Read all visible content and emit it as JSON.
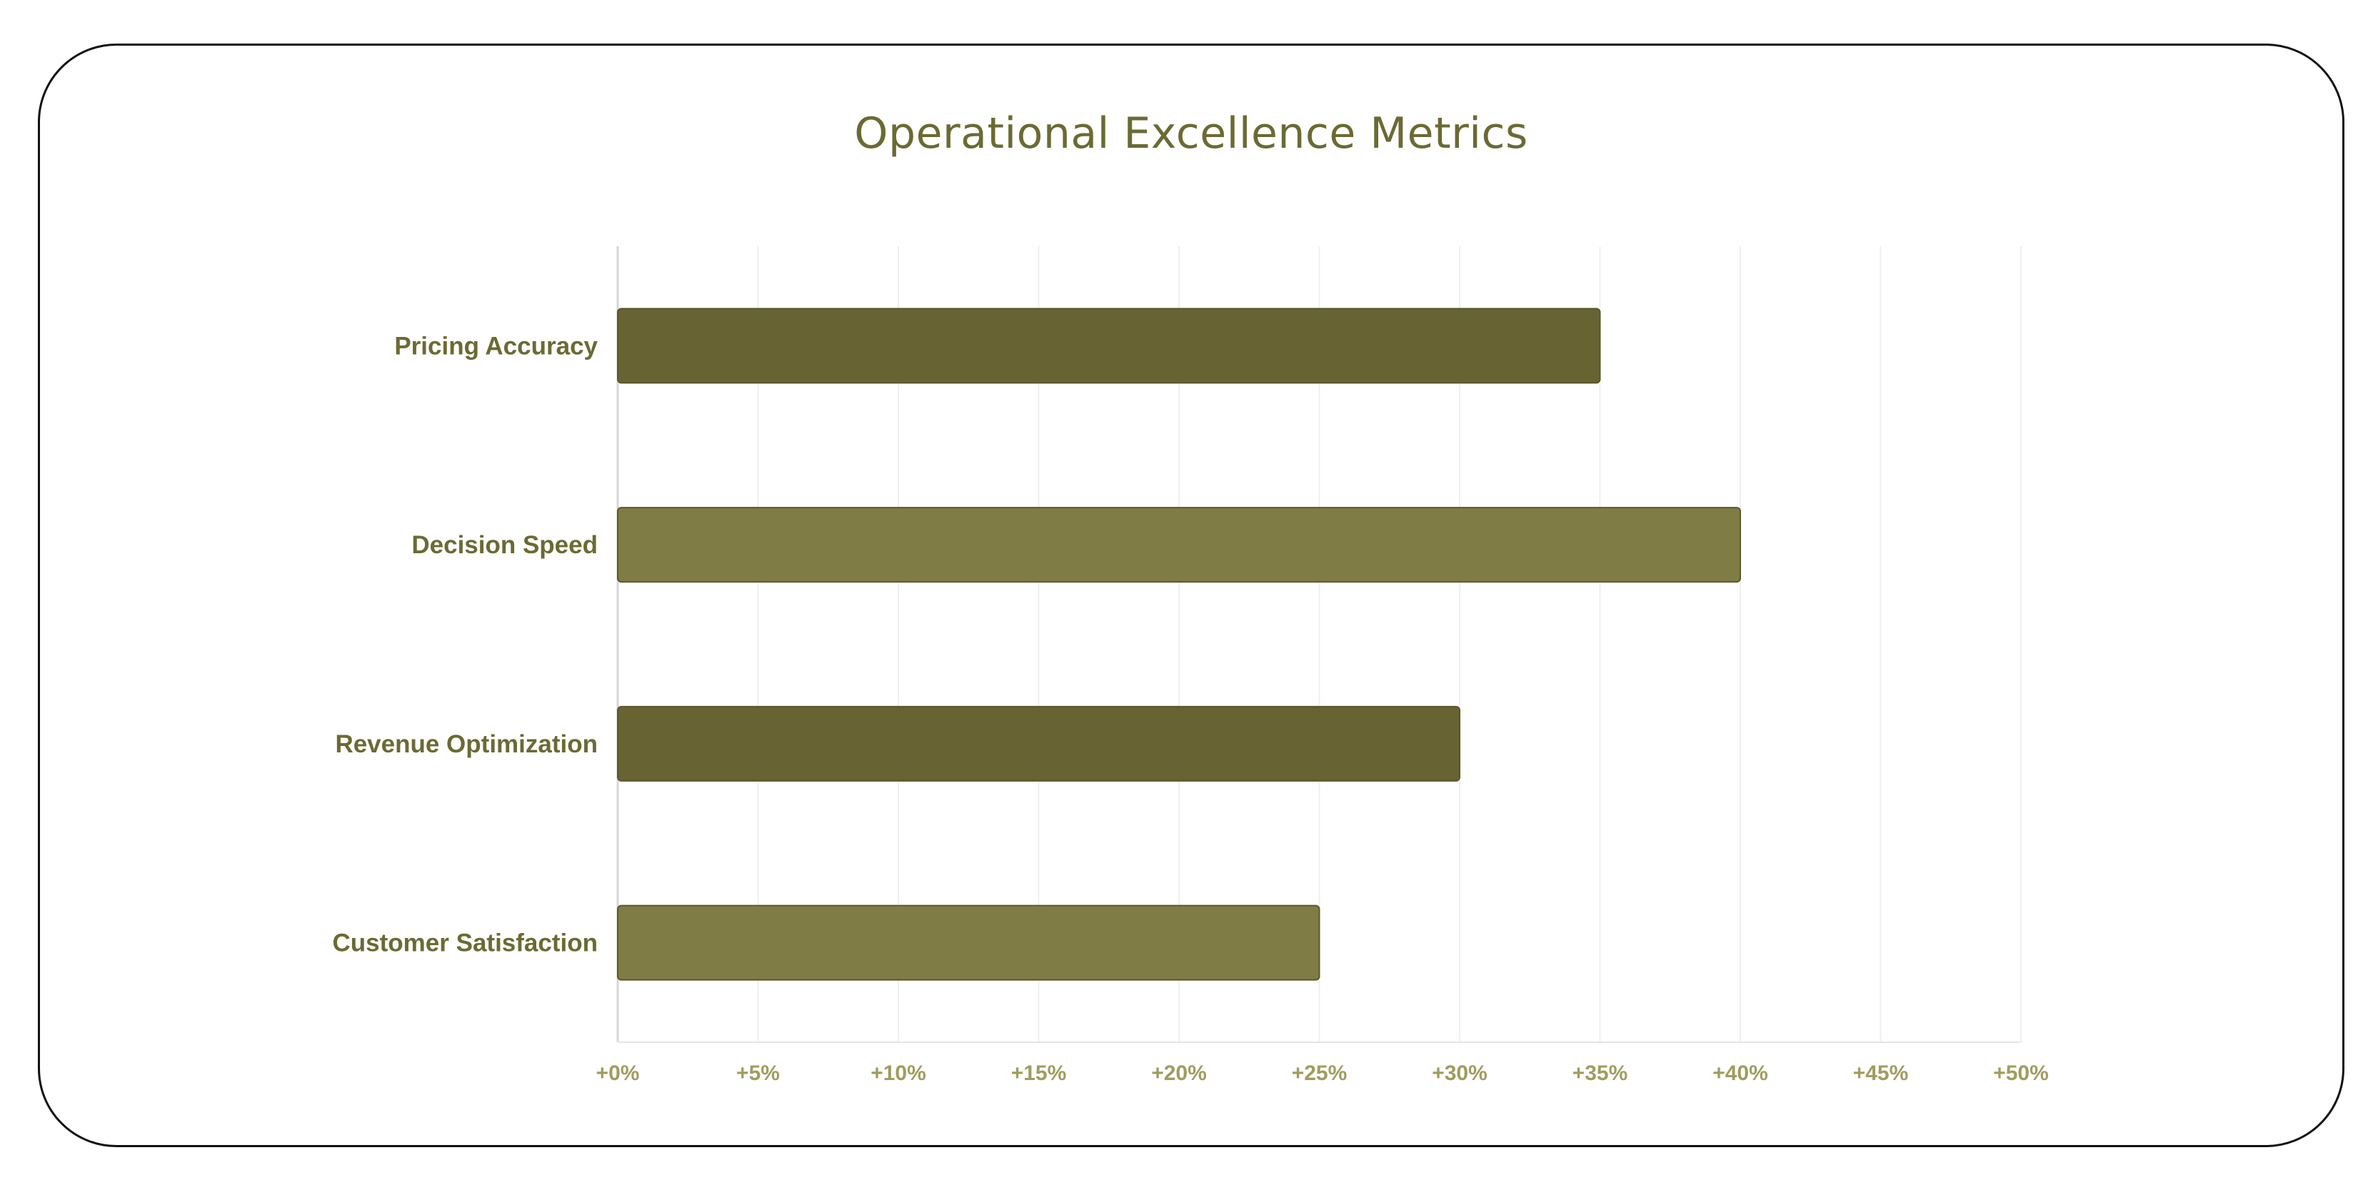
{
  "chart_data": {
    "type": "bar",
    "orientation": "horizontal",
    "title": "Operational Excellence Metrics",
    "xlabel": "",
    "ylabel": "",
    "categories": [
      "Pricing Accuracy",
      "Decision Speed",
      "Revenue Optimization",
      "Customer Satisfaction"
    ],
    "values": [
      35,
      40,
      30,
      25
    ],
    "xlim": [
      0,
      50
    ],
    "ticks": [
      0,
      5,
      10,
      15,
      20,
      25,
      30,
      35,
      40,
      45,
      50
    ],
    "tick_labels": [
      "+0%",
      "+5%",
      "+10%",
      "+15%",
      "+20%",
      "+25%",
      "+30%",
      "+35%",
      "+40%",
      "+45%",
      "+50%"
    ],
    "bar_colors": [
      "#676332",
      "#807c46",
      "#676332",
      "#807c46"
    ],
    "grid": true,
    "legend": "none"
  }
}
